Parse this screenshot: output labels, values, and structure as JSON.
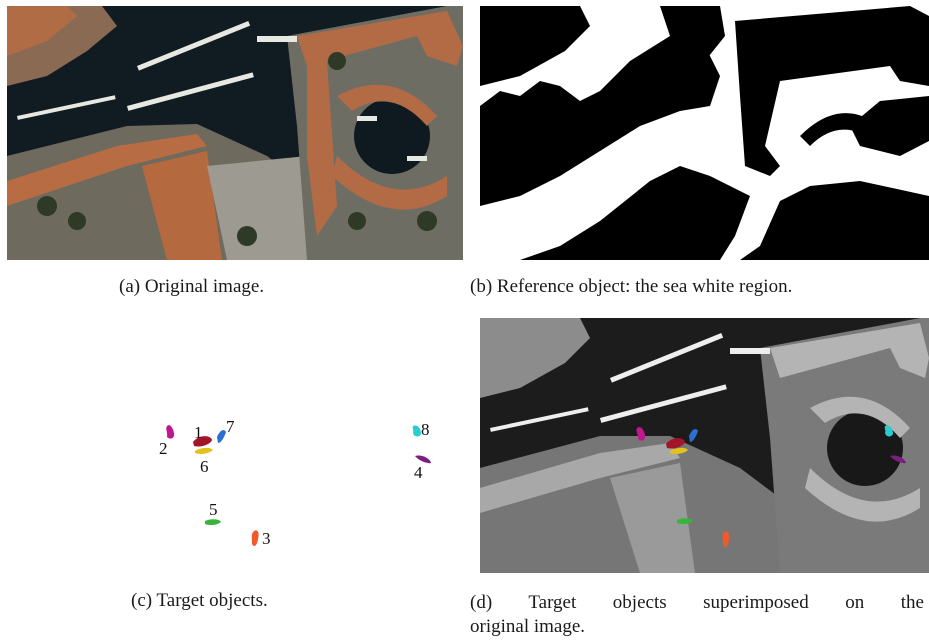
{
  "figure": {
    "panels": {
      "a": {
        "caption": "(a) Original image."
      },
      "b": {
        "caption": "(b) Reference object: the sea white region."
      },
      "c": {
        "caption": "(c) Target objects."
      },
      "d": {
        "caption_line1": "(d) Target objects superimposed on the",
        "caption_line2": "original image."
      }
    },
    "targets": [
      {
        "id": "1",
        "color": "#a3162a"
      },
      {
        "id": "2",
        "color": "#c0178f"
      },
      {
        "id": "3",
        "color": "#ee5a2a"
      },
      {
        "id": "4",
        "color": "#7a1f7f"
      },
      {
        "id": "5",
        "color": "#38b43c"
      },
      {
        "id": "6",
        "color": "#e2c21b"
      },
      {
        "id": "7",
        "color": "#2c6fd2"
      },
      {
        "id": "8",
        "color": "#28cdd0"
      }
    ]
  }
}
